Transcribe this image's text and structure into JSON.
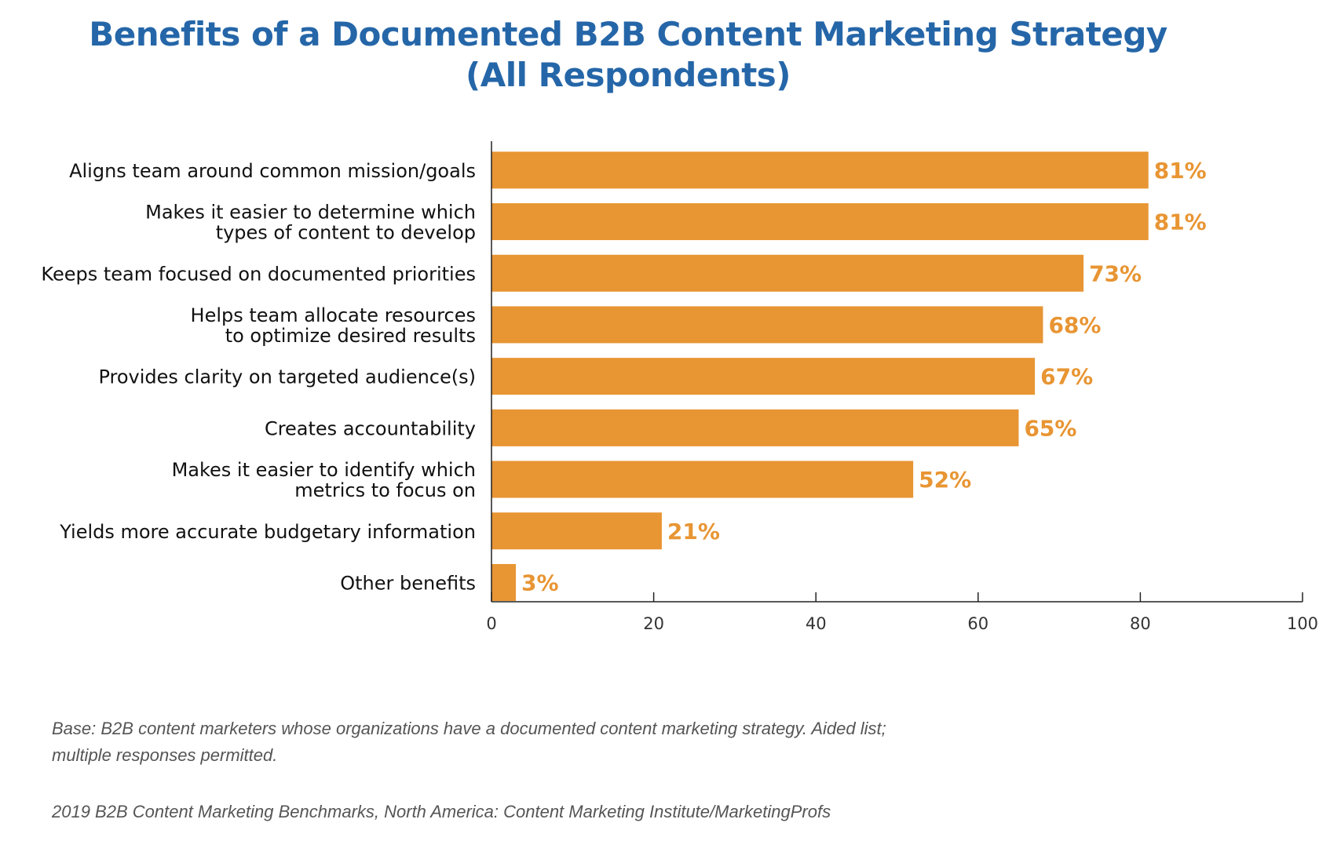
{
  "title": {
    "line1": "Benefits of a Documented B2B Content Marketing Strategy",
    "line2": "(All Respondents)"
  },
  "footnotes": {
    "base": "Base: B2B content marketers whose organizations have a documented content marketing strategy. Aided list; multiple responses permitted.",
    "source": "2019 B2B Content Marketing Benchmarks, North America: Content Marketing Institute/MarketingProfs"
  },
  "colors": {
    "bar": "#e89533",
    "label": "#e89533",
    "title": "#2566a8",
    "axis": "#222222"
  },
  "chart_data": {
    "type": "bar",
    "orientation": "horizontal",
    "categories": [
      [
        "Aligns team around common mission/goals"
      ],
      [
        "Makes it easier to determine which",
        "types of content to develop"
      ],
      [
        "Keeps team focused on documented priorities"
      ],
      [
        "Helps team allocate resources",
        "to optimize desired results"
      ],
      [
        "Provides clarity on targeted audience(s)"
      ],
      [
        "Creates accountability"
      ],
      [
        "Makes it easier to identify which",
        "metrics to focus on"
      ],
      [
        "Yields more accurate budgetary information"
      ],
      [
        "Other benefits"
      ]
    ],
    "values": [
      81,
      81,
      73,
      68,
      67,
      65,
      52,
      21,
      3
    ],
    "value_labels": [
      "81%",
      "81%",
      "73%",
      "68%",
      "67%",
      "65%",
      "52%",
      "21%",
      "3%"
    ],
    "xlim": [
      0,
      100
    ],
    "xticks": [
      0,
      20,
      40,
      60,
      80,
      100
    ],
    "xtick_labels": [
      "0",
      "20",
      "40",
      "60",
      "80",
      "100"
    ],
    "grid": false,
    "legend": "none"
  }
}
